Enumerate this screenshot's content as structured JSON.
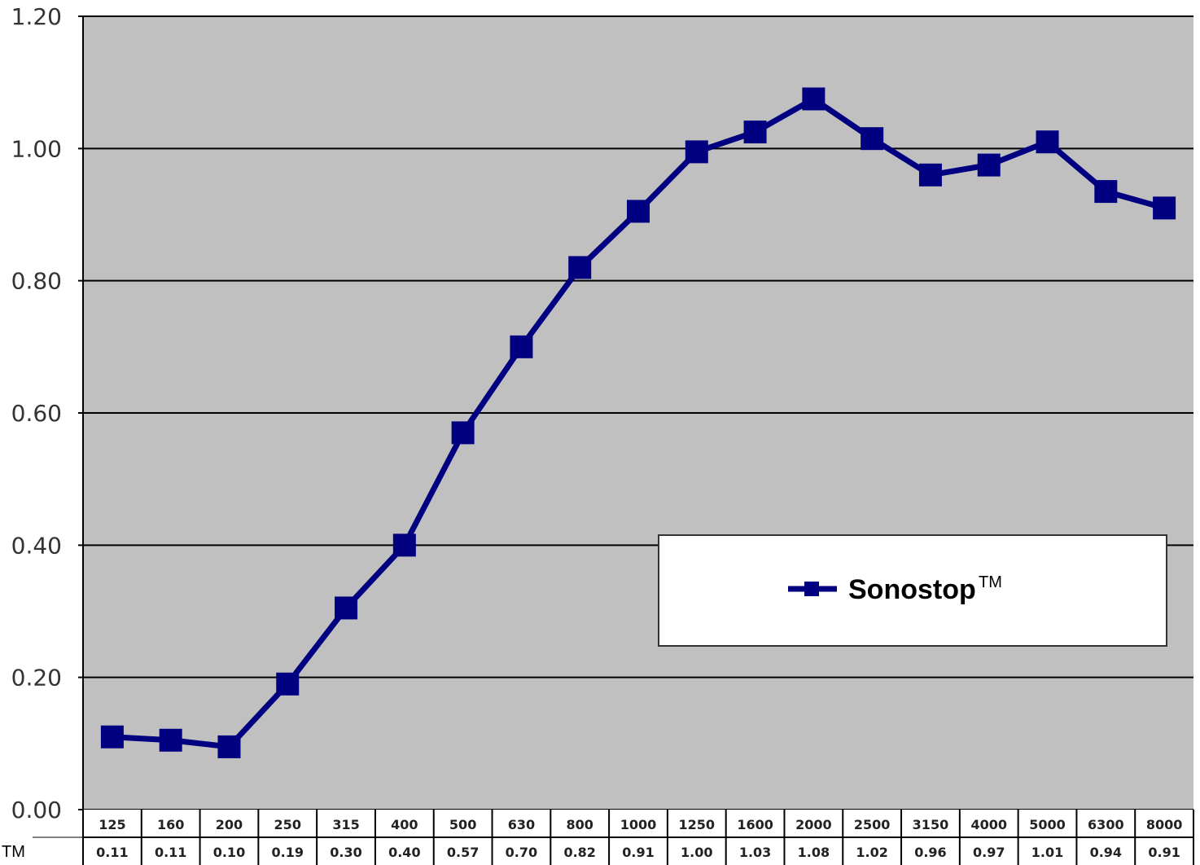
{
  "chart_data": {
    "type": "line",
    "title": "",
    "xlabel": "",
    "ylabel": "",
    "ylim": [
      0,
      1.2
    ],
    "y_ticks": [
      "0.00",
      "0.20",
      "0.40",
      "0.60",
      "0.80",
      "1.00",
      "1.20"
    ],
    "grid": true,
    "legend_position": "center-right",
    "categories": [
      "125",
      "160",
      "200",
      "250",
      "315",
      "400",
      "500",
      "630",
      "800",
      "1000",
      "1250",
      "1600",
      "2000",
      "2500",
      "3150",
      "4000",
      "5000",
      "6300",
      "8000"
    ],
    "series": [
      {
        "name": "Sonostop",
        "name_superscript": "TM",
        "color": "#000080",
        "values": [
          0.11,
          0.105,
          0.095,
          0.19,
          0.305,
          0.4,
          0.57,
          0.7,
          0.82,
          0.905,
          0.995,
          1.025,
          1.075,
          1.015,
          0.96,
          0.975,
          1.01,
          0.935,
          0.91
        ]
      }
    ],
    "table_values": [
      "0.11",
      "0.11",
      "0.10",
      "0.19",
      "0.30",
      "0.40",
      "0.57",
      "0.70",
      "0.82",
      "0.91",
      "1.00",
      "1.03",
      "1.08",
      "1.02",
      "0.96",
      "0.97",
      "1.01",
      "0.94",
      "0.91"
    ],
    "table_row_label": "TM",
    "colors": {
      "plot_background": "#c0c0c0",
      "gridline": "#000000",
      "series": "#000080"
    }
  }
}
